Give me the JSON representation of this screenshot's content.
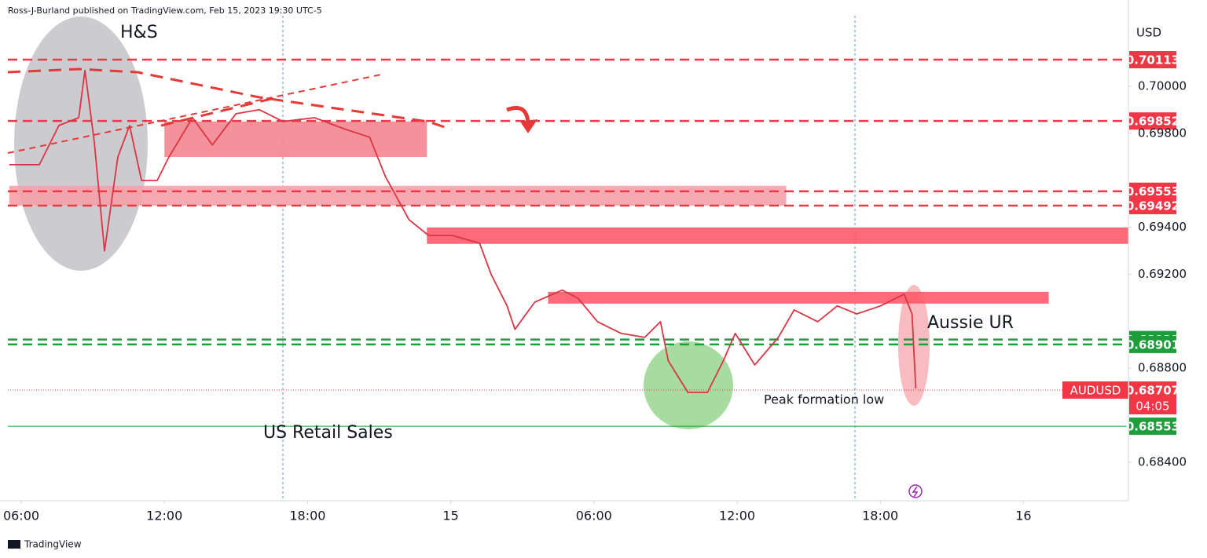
{
  "chart_data": {
    "type": "line",
    "title": "Ross-J-Burland published on TradingView.com, Feb 15, 2023 19:30 UTC-5",
    "source": "TradingView",
    "y_axis_label": "USD",
    "annotations": [
      "H&S",
      "Aussie UR",
      "Peak formation low",
      "US Retail Sales"
    ],
    "series": [
      {
        "name": "AUDUSD",
        "color": "#d93545",
        "x": [
          5.5,
          6.76,
          7.58,
          8.41,
          8.67,
          9.06,
          9.49,
          10.05,
          10.54,
          11.04,
          11.7,
          12.19,
          13.18,
          14.01,
          15.0,
          15.98,
          16.97,
          18.29,
          19.61,
          20.6,
          21.26,
          22.25,
          23.07,
          24.06,
          25.21,
          25.7,
          26.36,
          26.69,
          27.52,
          28.67,
          29.33,
          30.15,
          31.14,
          32.13,
          32.79,
          33.12,
          33.94,
          34.76,
          35.42,
          35.92,
          36.74,
          37.73,
          38.39,
          39.38,
          40.2,
          41.02,
          42.01,
          43.0,
          43.33,
          43.49
        ],
        "values": [
          0.69666,
          0.69666,
          0.69833,
          0.69866,
          0.70067,
          0.69766,
          0.69299,
          0.69699,
          0.69833,
          0.69599,
          0.69599,
          0.69699,
          0.69866,
          0.6975,
          0.69883,
          0.699,
          0.6985,
          0.69866,
          0.69816,
          0.69783,
          0.69616,
          0.69432,
          0.69365,
          0.69365,
          0.69332,
          0.69198,
          0.69065,
          0.68965,
          0.69081,
          0.69132,
          0.69098,
          0.68998,
          0.68948,
          0.68931,
          0.68998,
          0.68831,
          0.68697,
          0.68697,
          0.68831,
          0.68948,
          0.68814,
          0.68931,
          0.69048,
          0.68998,
          0.69065,
          0.69031,
          0.69065,
          0.69115,
          0.69031,
          0.68714
        ]
      }
    ],
    "levels": [
      {
        "value": 0.70113,
        "color": "#f23645",
        "style": "dashed"
      },
      {
        "value": 0.69852,
        "color": "#f23645",
        "style": "dashed"
      },
      {
        "value": 0.69553,
        "color": "#f23645",
        "style": "dashed"
      },
      {
        "value": 0.69492,
        "color": "#f23645",
        "style": "dashed"
      },
      {
        "value": 0.68922,
        "color": "#1e9e3a",
        "style": "dashed"
      },
      {
        "value": 0.68901,
        "color": "#1e9e3a",
        "style": "dashed"
      },
      {
        "value": 0.68707,
        "color": "#f23645",
        "style": "dotted",
        "symbol": "AUDUSD",
        "countdown": "04:05"
      },
      {
        "value": 0.68553,
        "color": "#1e9e3a",
        "style": "solid"
      }
    ],
    "zones": [
      {
        "x": [
          12.0,
          23.0
        ],
        "y": [
          0.6985,
          0.69699
        ],
        "color": "#f48590"
      },
      {
        "x": [
          5.5,
          38.06
        ],
        "y": [
          0.69576,
          0.69492
        ],
        "color": "#f6a0a8"
      },
      {
        "x": [
          23.0,
          52.4
        ],
        "y": [
          0.69399,
          0.69329
        ],
        "color": "#ff5a6b"
      },
      {
        "x": [
          28.08,
          49.06
        ],
        "y": [
          0.69125,
          0.69075
        ],
        "color": "#ff5a6b"
      }
    ],
    "xlim": [
      5.44,
      52.4
    ],
    "ylim": [
      0.68236,
      0.70367
    ],
    "xticks": [
      {
        "value": 6,
        "label": "06:00"
      },
      {
        "value": 12,
        "label": "12:00"
      },
      {
        "value": 18,
        "label": "18:00"
      },
      {
        "value": 24,
        "label": "15"
      },
      {
        "value": 30,
        "label": "06:00"
      },
      {
        "value": 36,
        "label": "12:00"
      },
      {
        "value": 42,
        "label": "18:00"
      },
      {
        "value": 48,
        "label": "16"
      }
    ],
    "yticks": [
      {
        "value": 0.684,
        "label": "0.68400"
      },
      {
        "value": 0.688,
        "label": "0.68800"
      },
      {
        "value": 0.692,
        "label": "0.69200"
      },
      {
        "value": 0.694,
        "label": "0.69400"
      },
      {
        "value": 0.698,
        "label": "0.69800"
      },
      {
        "value": 0.7,
        "label": "0.70000"
      }
    ],
    "grid": false
  }
}
